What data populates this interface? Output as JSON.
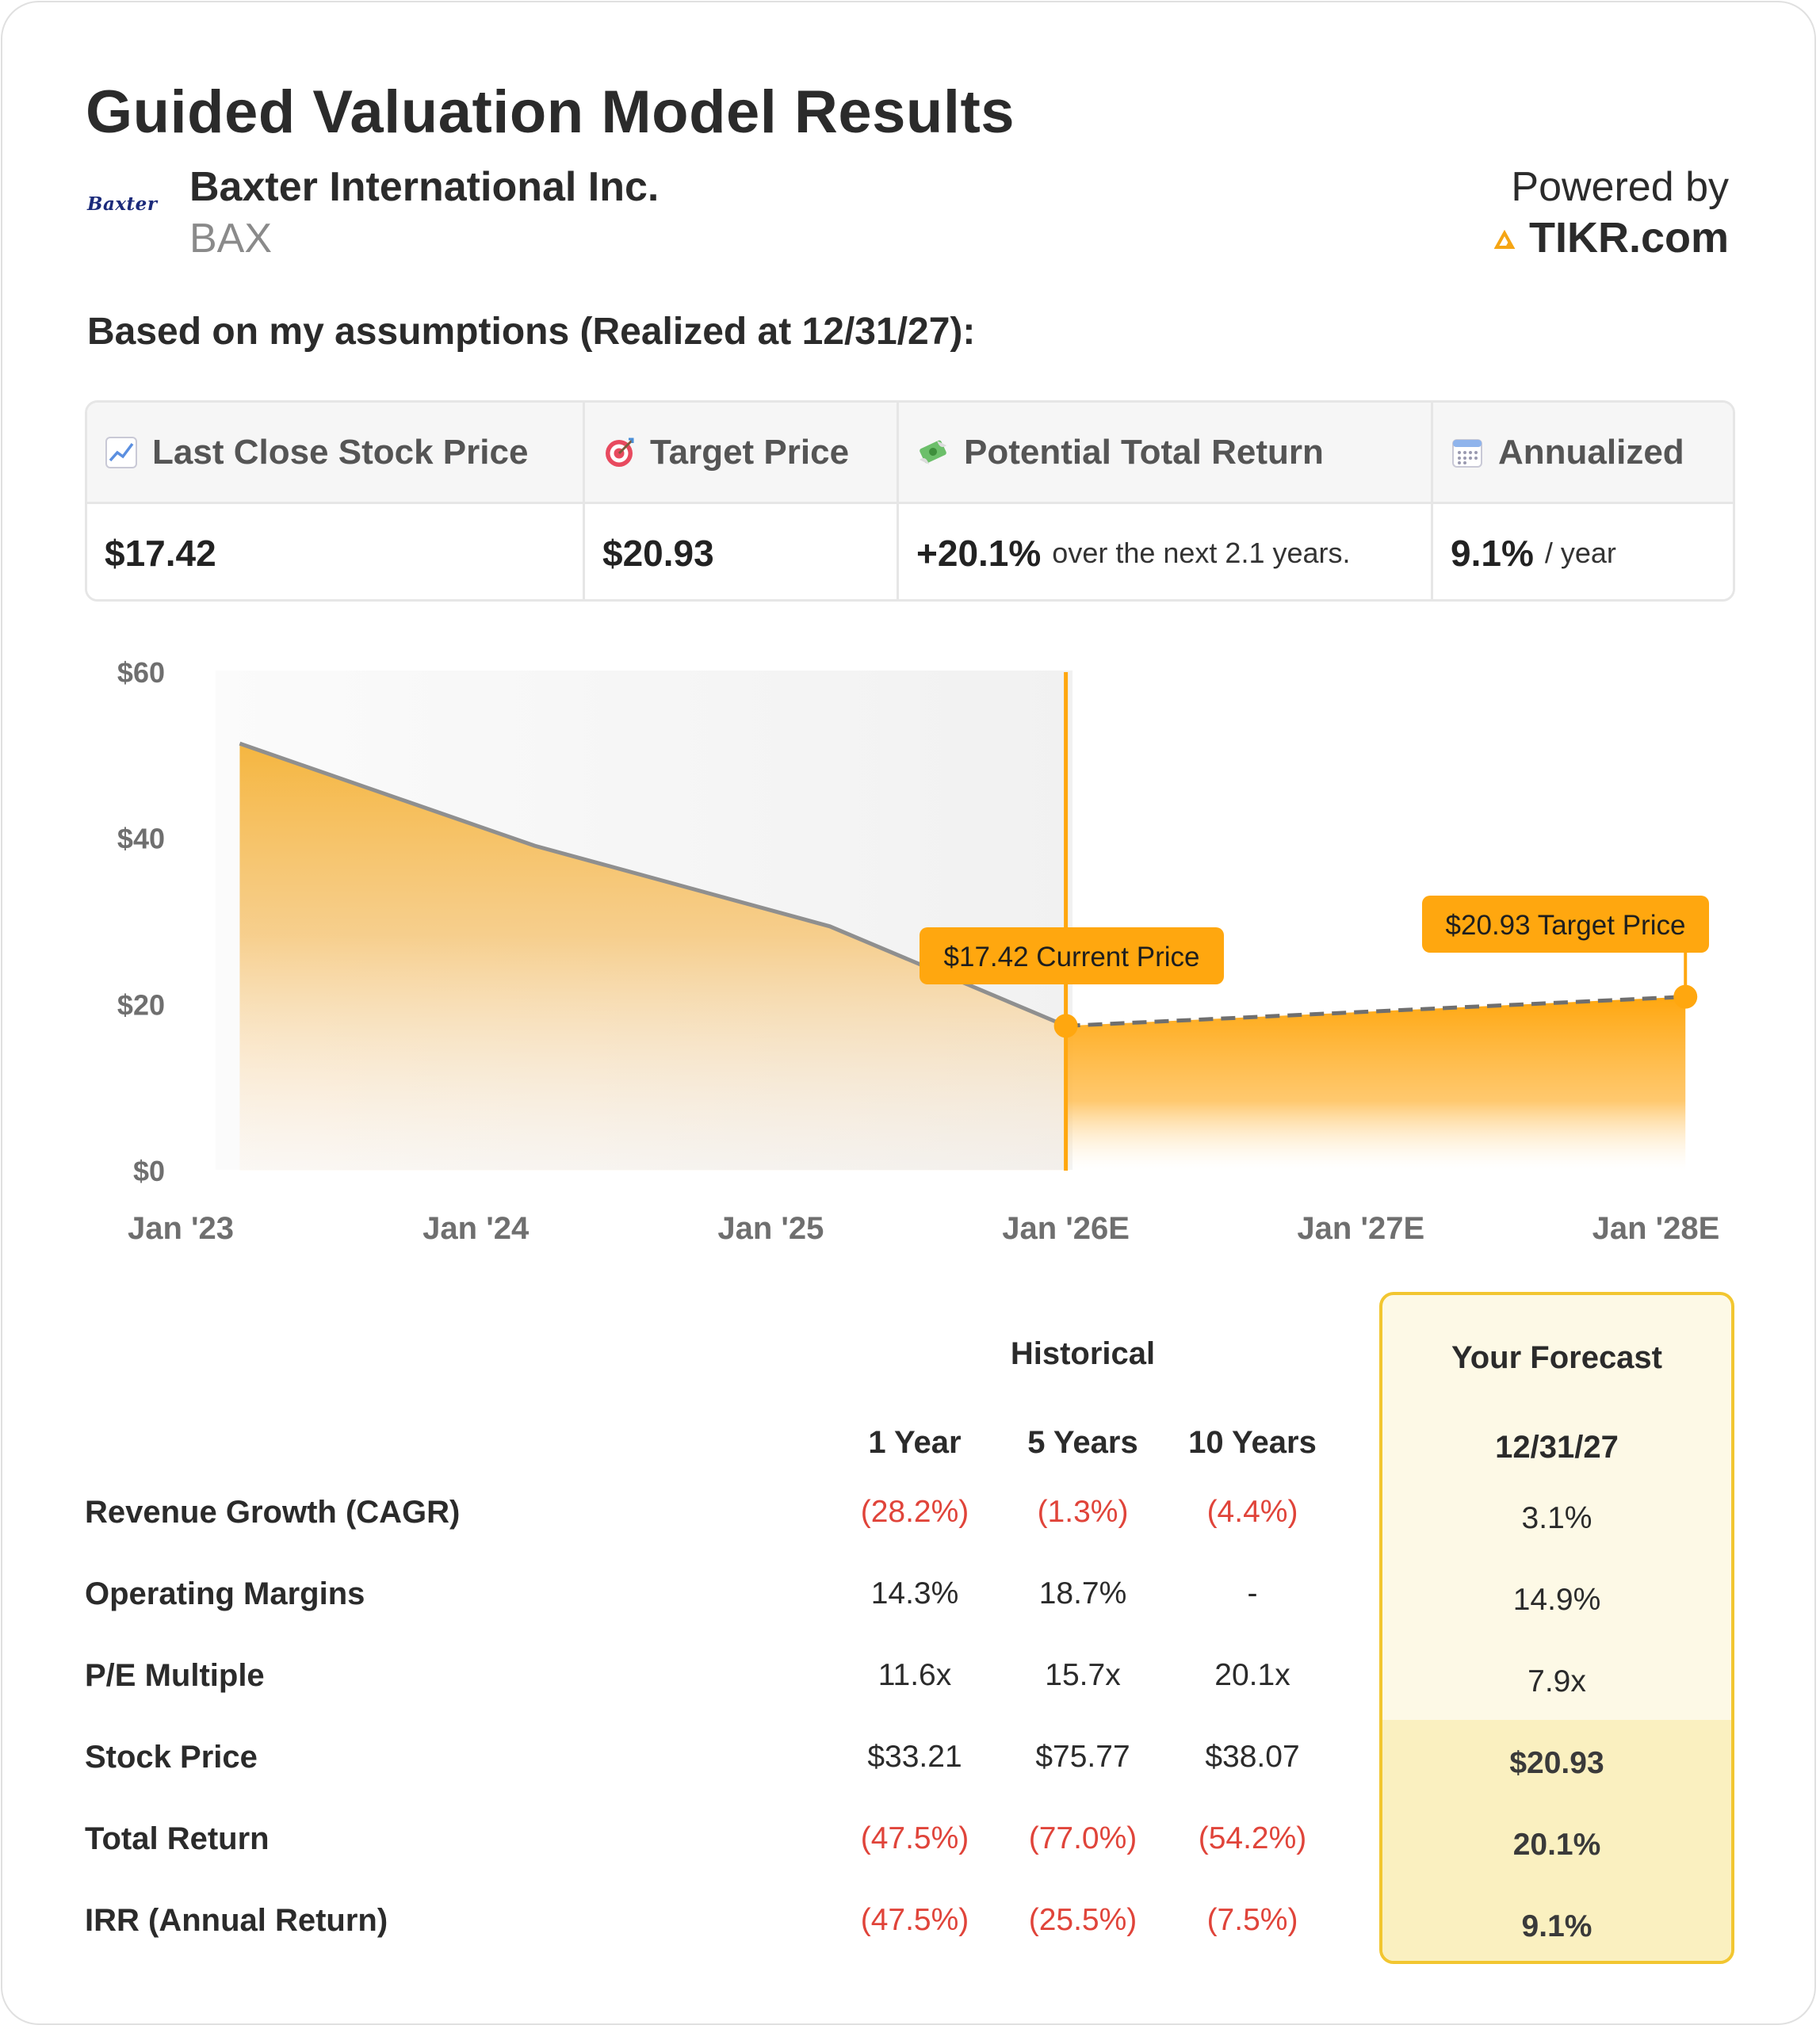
{
  "header": {
    "title": "Guided Valuation Model Results",
    "logo_text": "Baxter",
    "company_name": "Baxter International Inc.",
    "ticker": "BAX",
    "powered_by": "Powered by",
    "brand": "TIKR.com"
  },
  "subtitle": "Based on my assumptions (Realized at 12/31/27):",
  "summary": {
    "headers": [
      {
        "label": "Last Close Stock Price",
        "icon": "chart-increasing-icon"
      },
      {
        "label": "Target Price",
        "icon": "target-icon"
      },
      {
        "label": "Potential Total Return",
        "icon": "money-with-wings-icon"
      },
      {
        "label": "Annualized",
        "icon": "calendar-icon"
      }
    ],
    "last_close": "$17.42",
    "target_price": "$20.93",
    "total_return": "+20.1%",
    "total_return_note": "over the next 2.1 years.",
    "annualized": "9.1%",
    "annualized_note": "/ year"
  },
  "chart_data": {
    "type": "area",
    "y_ticks": [
      "$60",
      "$40",
      "$20",
      "$0"
    ],
    "ylim": [
      0,
      60
    ],
    "x_ticks": [
      "Jan '23",
      "Jan '24",
      "Jan '25",
      "Jan '26E",
      "Jan '27E",
      "Jan '28E"
    ],
    "historical": [
      {
        "x": 2023.2,
        "y": 51.4
      },
      {
        "x": 2024.2,
        "y": 39.1
      },
      {
        "x": 2025.2,
        "y": 29.4
      },
      {
        "x": 2026.0,
        "y": 17.42
      }
    ],
    "forecast": [
      {
        "x": 2026.0,
        "y": 17.42
      },
      {
        "x": 2028.1,
        "y": 20.93
      }
    ],
    "annotations": {
      "current": "$17.42 Current Price",
      "target": "$20.93 Target Price"
    },
    "colors": {
      "accent": "#ffa70f",
      "line": "#8f8f8f",
      "shade": "#f3f3f3"
    }
  },
  "table": {
    "historical_label": "Historical",
    "forecast_label": "Your Forecast",
    "columns": [
      "1 Year",
      "5 Years",
      "10 Years"
    ],
    "forecast_date": "12/31/27",
    "rows": [
      {
        "label": "Revenue Growth (CAGR)",
        "values": [
          "(28.2%)",
          "(1.3%)",
          "(4.4%)"
        ],
        "forecast": "3.1%"
      },
      {
        "label": "Operating Margins",
        "values": [
          "14.3%",
          "18.7%",
          "-"
        ],
        "forecast": "14.9%"
      },
      {
        "label": "P/E Multiple",
        "values": [
          "11.6x",
          "15.7x",
          "20.1x"
        ],
        "forecast": "7.9x"
      },
      {
        "label": "Stock Price",
        "values": [
          "$33.21",
          "$75.77",
          "$38.07"
        ],
        "forecast": "$20.93"
      },
      {
        "label": "Total Return",
        "values": [
          "(47.5%)",
          "(77.0%)",
          "(54.2%)"
        ],
        "forecast": "20.1%"
      },
      {
        "label": "IRR (Annual Return)",
        "values": [
          "(47.5%)",
          "(25.5%)",
          "(7.5%)"
        ],
        "forecast": "9.1%"
      }
    ]
  }
}
